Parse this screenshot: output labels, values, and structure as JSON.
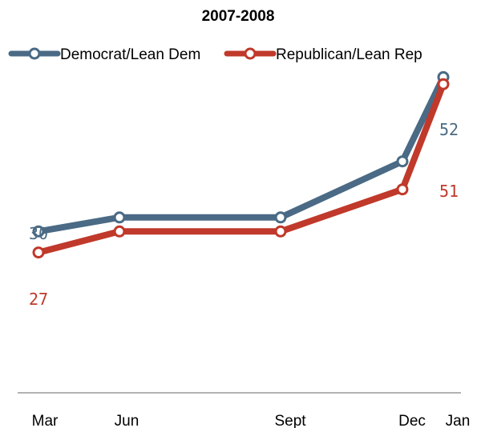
{
  "chart_data": {
    "type": "line",
    "title": "2007-2008",
    "categories": [
      "Mar",
      "Jun",
      "Sept",
      "Dec",
      "Jan"
    ],
    "x_dates": [
      "2007-03",
      "2007-06",
      "2007-09",
      "2007-12",
      "2008-01"
    ],
    "series": [
      {
        "name": "Democrat/Lean Dem",
        "color": "#4a6a85",
        "values": [
          30,
          32,
          32,
          40,
          52
        ],
        "labels": {
          "first": "30",
          "last": "52"
        }
      },
      {
        "name": "Republican/Lean Rep",
        "color": "#c0392b",
        "values": [
          27,
          30,
          30,
          36,
          51
        ],
        "labels": {
          "first": "27",
          "last": "51"
        }
      }
    ],
    "ylim": [
      7,
      63
    ],
    "grid": false,
    "legend": "top"
  }
}
